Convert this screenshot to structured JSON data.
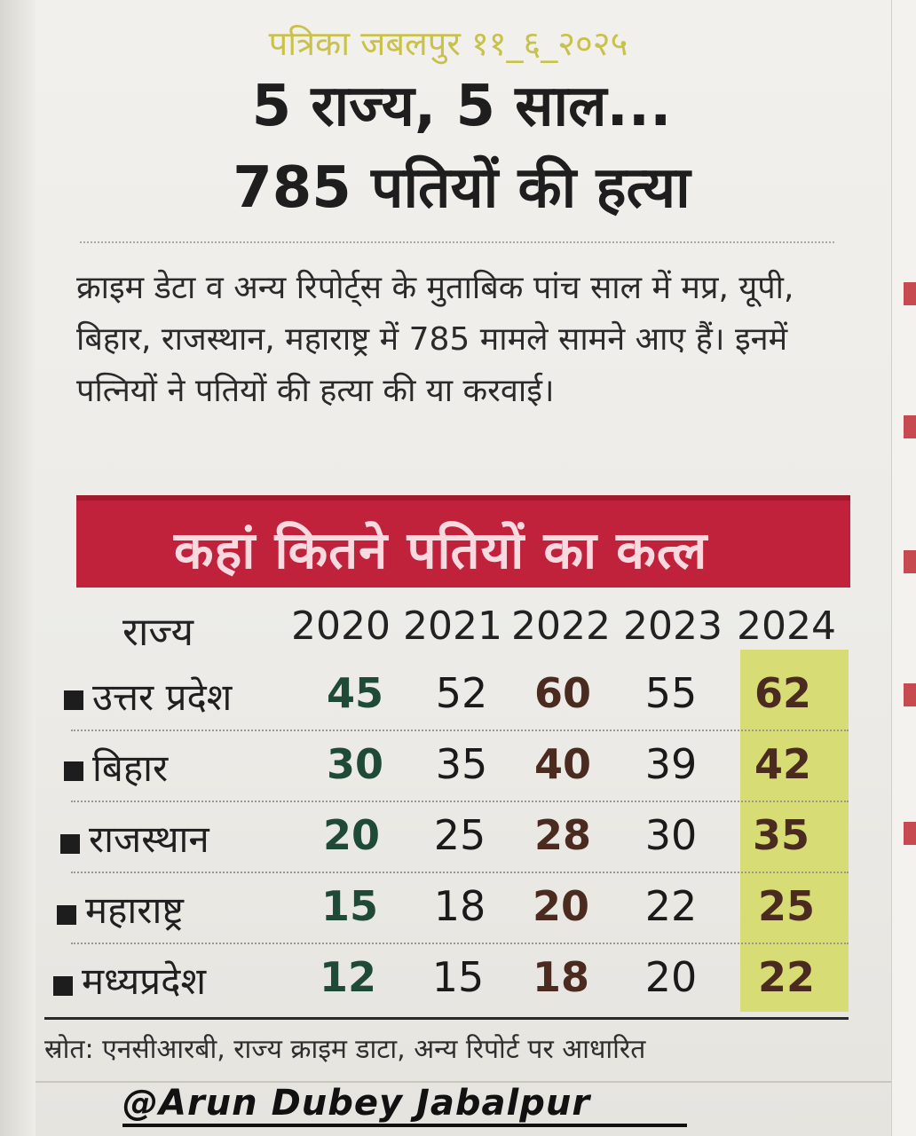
{
  "dateline": "पत्रिका जबलपुर ११_६_२०२५",
  "headline": {
    "line1": "5 राज्य, 5 साल...",
    "line2": "785 पतियों की हत्या"
  },
  "intro": "क्राइम डेटा व अन्य रिपोर्ट्स के मुताबिक पांच साल में मप्र, यूपी, बिहार, राजस्थान, महाराष्ट्र में 785 मामले सामने आए हैं। इनमें पत्नियों ने पतियों की हत्या की या करवाई।",
  "table": {
    "banner": "कहां कितने पतियों का कत्ल",
    "header_state": "राज्य",
    "years": [
      "2020",
      "2021",
      "2022",
      "2023",
      "2024"
    ],
    "rows": [
      {
        "state": "उत्तर प्रदेश",
        "values": [
          "45",
          "52",
          "60",
          "55",
          "62"
        ]
      },
      {
        "state": "बिहार",
        "values": [
          "30",
          "35",
          "40",
          "39",
          "42"
        ]
      },
      {
        "state": "राजस्थान",
        "values": [
          "20",
          "25",
          "28",
          "30",
          "35"
        ]
      },
      {
        "state": "महाराष्ट्र",
        "values": [
          "15",
          "18",
          "20",
          "22",
          "25"
        ]
      },
      {
        "state": "मध्यप्रदेश",
        "values": [
          "12",
          "15",
          "18",
          "20",
          "22"
        ]
      }
    ],
    "highlight_color": "#d7dc74",
    "banner_color": "#c0223c"
  },
  "source": "स्रोत: एनसीआरबी, राज्य क्राइम डाटा, अन्य रिपोर्ट पर आधारित",
  "credit": "@Arun Dubey Jabalpur"
}
